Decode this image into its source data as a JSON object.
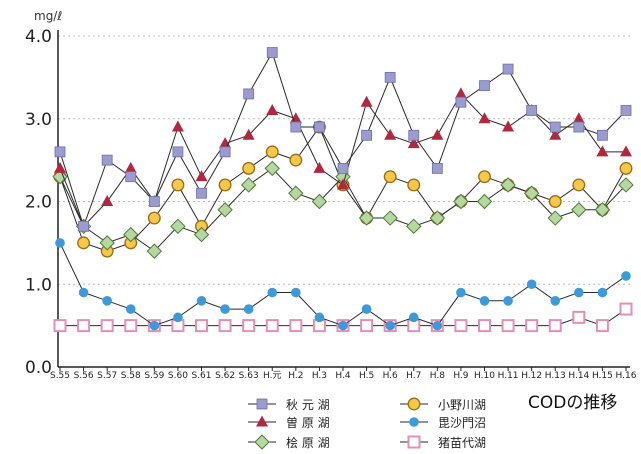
{
  "chart_data": {
    "type": "line",
    "unit": "mg/ℓ",
    "title": "CODの推移",
    "ylim": [
      0,
      4.0
    ],
    "y_ticks": [
      "0.0",
      "1.0",
      "2.0",
      "3.0",
      "4.0"
    ],
    "y_tick_values": [
      0,
      1,
      2,
      3,
      4
    ],
    "grid": "horizontal-dashed",
    "legend_position": "bottom-center",
    "categories": [
      "S.55",
      "S.56",
      "S.57",
      "S.58",
      "S.59",
      "S.60",
      "S.61",
      "S.62",
      "S.63",
      "H.元",
      "H.2",
      "H.3",
      "H.4",
      "H.5",
      "H.6",
      "H.7",
      "H.8",
      "H.9",
      "H.10",
      "H.11",
      "H.12",
      "H.13",
      "H.14",
      "H.15",
      "H.16"
    ],
    "series": [
      {
        "name": "秋 元 湖",
        "color": "#9b9bd0",
        "marker": "square",
        "values": [
          2.6,
          1.7,
          2.5,
          2.3,
          2.0,
          2.6,
          2.1,
          2.6,
          3.3,
          3.8,
          2.9,
          2.9,
          2.4,
          2.8,
          3.5,
          2.8,
          2.4,
          3.2,
          3.4,
          3.6,
          3.1,
          2.9,
          2.9,
          2.8,
          3.1
        ]
      },
      {
        "name": "曽 原 湖",
        "color": "#b02840",
        "marker": "triangle",
        "values": [
          2.4,
          1.7,
          2.0,
          2.4,
          2.0,
          2.9,
          2.3,
          2.7,
          2.8,
          3.1,
          3.0,
          2.4,
          2.2,
          3.2,
          2.8,
          2.7,
          2.8,
          3.3,
          3.0,
          2.9,
          3.1,
          2.8,
          3.0,
          2.6,
          2.6
        ]
      },
      {
        "name": "桧 原 湖",
        "color": "#b5d8a0",
        "marker": "diamond",
        "values": [
          2.3,
          1.7,
          1.5,
          1.6,
          1.4,
          1.7,
          1.6,
          1.9,
          2.2,
          2.4,
          2.1,
          2.0,
          2.3,
          1.8,
          1.8,
          1.7,
          1.8,
          2.0,
          2.0,
          2.2,
          2.1,
          1.8,
          1.9,
          1.9,
          2.2
        ]
      },
      {
        "name": "小野川湖",
        "color": "#f5c74a",
        "marker": "circle",
        "values": [
          2.3,
          1.5,
          1.4,
          1.5,
          1.8,
          2.2,
          1.7,
          2.2,
          2.4,
          2.6,
          2.5,
          2.9,
          2.2,
          1.8,
          2.3,
          2.2,
          1.8,
          2.0,
          2.3,
          2.2,
          2.1,
          2.0,
          2.2,
          1.9,
          2.4
        ]
      },
      {
        "name": "毘沙門沼",
        "color": "#3d9ad8",
        "marker": "dot",
        "values": [
          1.5,
          0.9,
          0.8,
          0.7,
          0.5,
          0.6,
          0.8,
          0.7,
          0.7,
          0.9,
          0.9,
          0.6,
          0.5,
          0.7,
          0.5,
          0.6,
          0.5,
          0.9,
          0.8,
          0.8,
          1.0,
          0.8,
          0.9,
          0.9,
          1.1
        ]
      },
      {
        "name": "猪苗代湖",
        "color": "#e28fb5",
        "marker": "open-square",
        "values": [
          0.5,
          0.5,
          0.5,
          0.5,
          0.5,
          0.5,
          0.5,
          0.5,
          0.5,
          0.5,
          0.5,
          0.5,
          0.5,
          0.5,
          0.5,
          0.5,
          0.5,
          0.5,
          0.5,
          0.5,
          0.5,
          0.5,
          0.6,
          0.5,
          0.7
        ]
      }
    ]
  }
}
